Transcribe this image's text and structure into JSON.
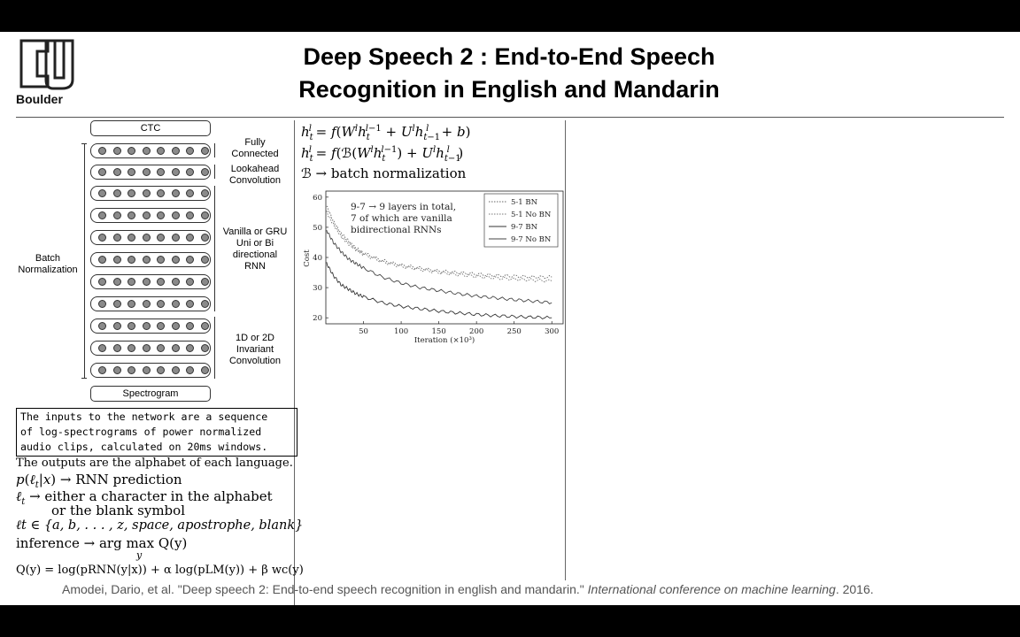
{
  "logo": {
    "letters": "CU",
    "caption": "Boulder"
  },
  "title": {
    "line1": "Deep Speech 2 : End-to-End Speech",
    "line2": "Recognition in English and Mandarin"
  },
  "diagram": {
    "top_box": "CTC",
    "bottom_box": "Spectrogram",
    "left_label_line1": "Batch",
    "left_label_line2": "Normalization",
    "groups": [
      {
        "lines": [
          "Fully",
          "Connected"
        ]
      },
      {
        "lines": [
          "Lookahead",
          "Convolution"
        ]
      },
      {
        "lines": [
          "Vanilla or GRU",
          "Uni or Bi",
          "directional",
          "RNN"
        ]
      },
      {
        "lines": [
          "1D or 2D",
          "Invariant",
          "Convolution"
        ]
      }
    ]
  },
  "code_box": {
    "line1": "The inputs to the network are a sequence",
    "line2": "of log-spectrograms of power normalized",
    "line3": "audio clips, calculated on 20ms windows."
  },
  "notes": {
    "outputs": "The outputs are the alphabet of each language.",
    "prediction_rhs": "→ RNN prediction",
    "ell_line1": "→ either a character in the alphabet",
    "ell_line2": "or the blank symbol",
    "set_line": "ℓt ∈ {a, b, . . . , z, space, apostrophe, blank}",
    "inference": "inference → arg max Q(y)",
    "inference_sub": "y",
    "objective": "Q(y) = log(pRNN(y|x)) + α log(pLM(y)) + β wc(y)"
  },
  "equations": {
    "eq1": "hlt = f(Wlhl−1t + Ulhlt−1 + b)",
    "eq2": "hlt = f(ℬ(Wlhl−1t) + Ulhlt−1)",
    "eq3": "ℬ → batch normalization"
  },
  "chart_data": {
    "type": "line",
    "title": "",
    "annotation": [
      "9-7 → 9 layers in total,",
      "7 of which are vanilla",
      "bidirectional RNNs"
    ],
    "xlabel": "Iteration (×10³)",
    "ylabel": "Cost",
    "xlim": [
      0,
      315
    ],
    "ylim": [
      18,
      62
    ],
    "xticks": [
      50,
      100,
      150,
      200,
      250,
      300
    ],
    "yticks": [
      20,
      30,
      40,
      50,
      60
    ],
    "legend_position": "top-right",
    "series": [
      {
        "name": "5-1 BN",
        "style": "dotted",
        "x": [
          1,
          10,
          20,
          30,
          40,
          50,
          75,
          100,
          125,
          150,
          175,
          200,
          225,
          250,
          275,
          300
        ],
        "y": [
          57,
          52,
          48,
          45.5,
          43,
          41.5,
          39,
          37.5,
          36.5,
          35.5,
          35,
          34.5,
          34,
          33.8,
          33.5,
          33.5
        ]
      },
      {
        "name": "5-1 No BN",
        "style": "dotted",
        "x": [
          1,
          10,
          20,
          30,
          40,
          50,
          75,
          100,
          125,
          150,
          175,
          200,
          225,
          250,
          275,
          300
        ],
        "y": [
          55,
          51,
          47,
          44.5,
          42.5,
          41,
          38.5,
          37,
          36,
          35,
          34.3,
          33.7,
          33.2,
          32.8,
          32.5,
          32.2
        ]
      },
      {
        "name": "9-7 BN",
        "style": "solid",
        "x": [
          1,
          10,
          20,
          30,
          40,
          50,
          75,
          100,
          125,
          150,
          175,
          200,
          225,
          250,
          275,
          300
        ],
        "y": [
          38,
          34,
          31,
          29.5,
          28,
          27,
          25,
          23.8,
          23,
          22.2,
          21.6,
          21.1,
          20.7,
          20.4,
          20.2,
          20
        ]
      },
      {
        "name": "9-7 No BN",
        "style": "solid",
        "x": [
          1,
          10,
          20,
          30,
          40,
          50,
          75,
          100,
          125,
          150,
          175,
          200,
          225,
          250,
          275,
          300
        ],
        "y": [
          49,
          45,
          42,
          39.5,
          38,
          36.5,
          33.5,
          31.5,
          30,
          29,
          28,
          27.2,
          26.6,
          26,
          25.5,
          25
        ]
      }
    ]
  },
  "citation": {
    "plain": "Amodei, Dario, et al. \"Deep speech 2: End-to-end speech recognition in english and mandarin.\" ",
    "italic": "International conference on machine learning",
    "tail": ". 2016."
  }
}
